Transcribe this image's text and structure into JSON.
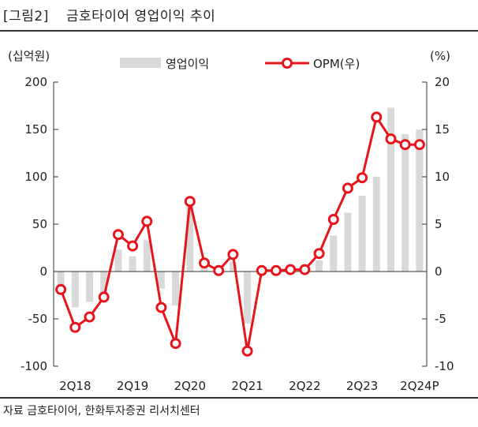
{
  "header": {
    "figure_label": "[그림2]",
    "title": "금호타이어 영업이익 추이"
  },
  "source": "자료 금호타이어, 한화투자증권 리서치센터",
  "colors": {
    "bar": "#d9d9d9",
    "line": "#e8141c",
    "marker_fill": "#ffffff",
    "axis": "#333333"
  },
  "chart_data": {
    "type": "bar+line",
    "title": "금호타이어 영업이익 추이",
    "y_left": {
      "unit_label": "(십억원)",
      "range": [
        -100,
        200
      ],
      "ticks": [
        "200",
        "150",
        "100",
        "50",
        "0",
        "-50",
        "-100"
      ]
    },
    "y_right": {
      "unit_label": "(%)",
      "range": [
        -10,
        20
      ],
      "ticks": [
        "20",
        "15",
        "10",
        "5",
        "0",
        "-5",
        "-10"
      ]
    },
    "categories": [
      "1Q18",
      "2Q18",
      "3Q18",
      "4Q18",
      "1Q19",
      "2Q19",
      "3Q19",
      "4Q19",
      "1Q20",
      "2Q20",
      "3Q20",
      "4Q20",
      "1Q21",
      "2Q21",
      "3Q21",
      "4Q21",
      "1Q22",
      "2Q22",
      "3Q22",
      "4Q22",
      "1Q23",
      "2Q23",
      "3Q23",
      "4Q23",
      "1Q24",
      "2Q24P"
    ],
    "x_tick_labels": [
      "2Q18",
      "2Q19",
      "2Q20",
      "2Q21",
      "2Q22",
      "2Q23",
      "2Q24P"
    ],
    "legend": {
      "bar": "영업이익",
      "line": "OPM(우)"
    },
    "series": [
      {
        "name": "영업이익",
        "type": "bar",
        "axis": "left",
        "values": [
          -15,
          -38,
          -32,
          -27,
          23,
          16,
          33,
          -18,
          -36,
          72,
          5,
          2,
          10,
          -55,
          0,
          0,
          2,
          2,
          12,
          38,
          62,
          80,
          100,
          173,
          145,
          150
        ]
      },
      {
        "name": "OPM(우)",
        "type": "line",
        "axis": "right",
        "values": [
          -1.9,
          -5.9,
          -4.8,
          -2.7,
          3.9,
          2.7,
          5.3,
          -3.8,
          -7.6,
          7.4,
          0.9,
          0.1,
          1.8,
          -8.4,
          0.1,
          0.1,
          0.2,
          0.2,
          1.9,
          5.5,
          8.8,
          9.9,
          16.3,
          14.0,
          13.4,
          13.4
        ]
      }
    ]
  }
}
